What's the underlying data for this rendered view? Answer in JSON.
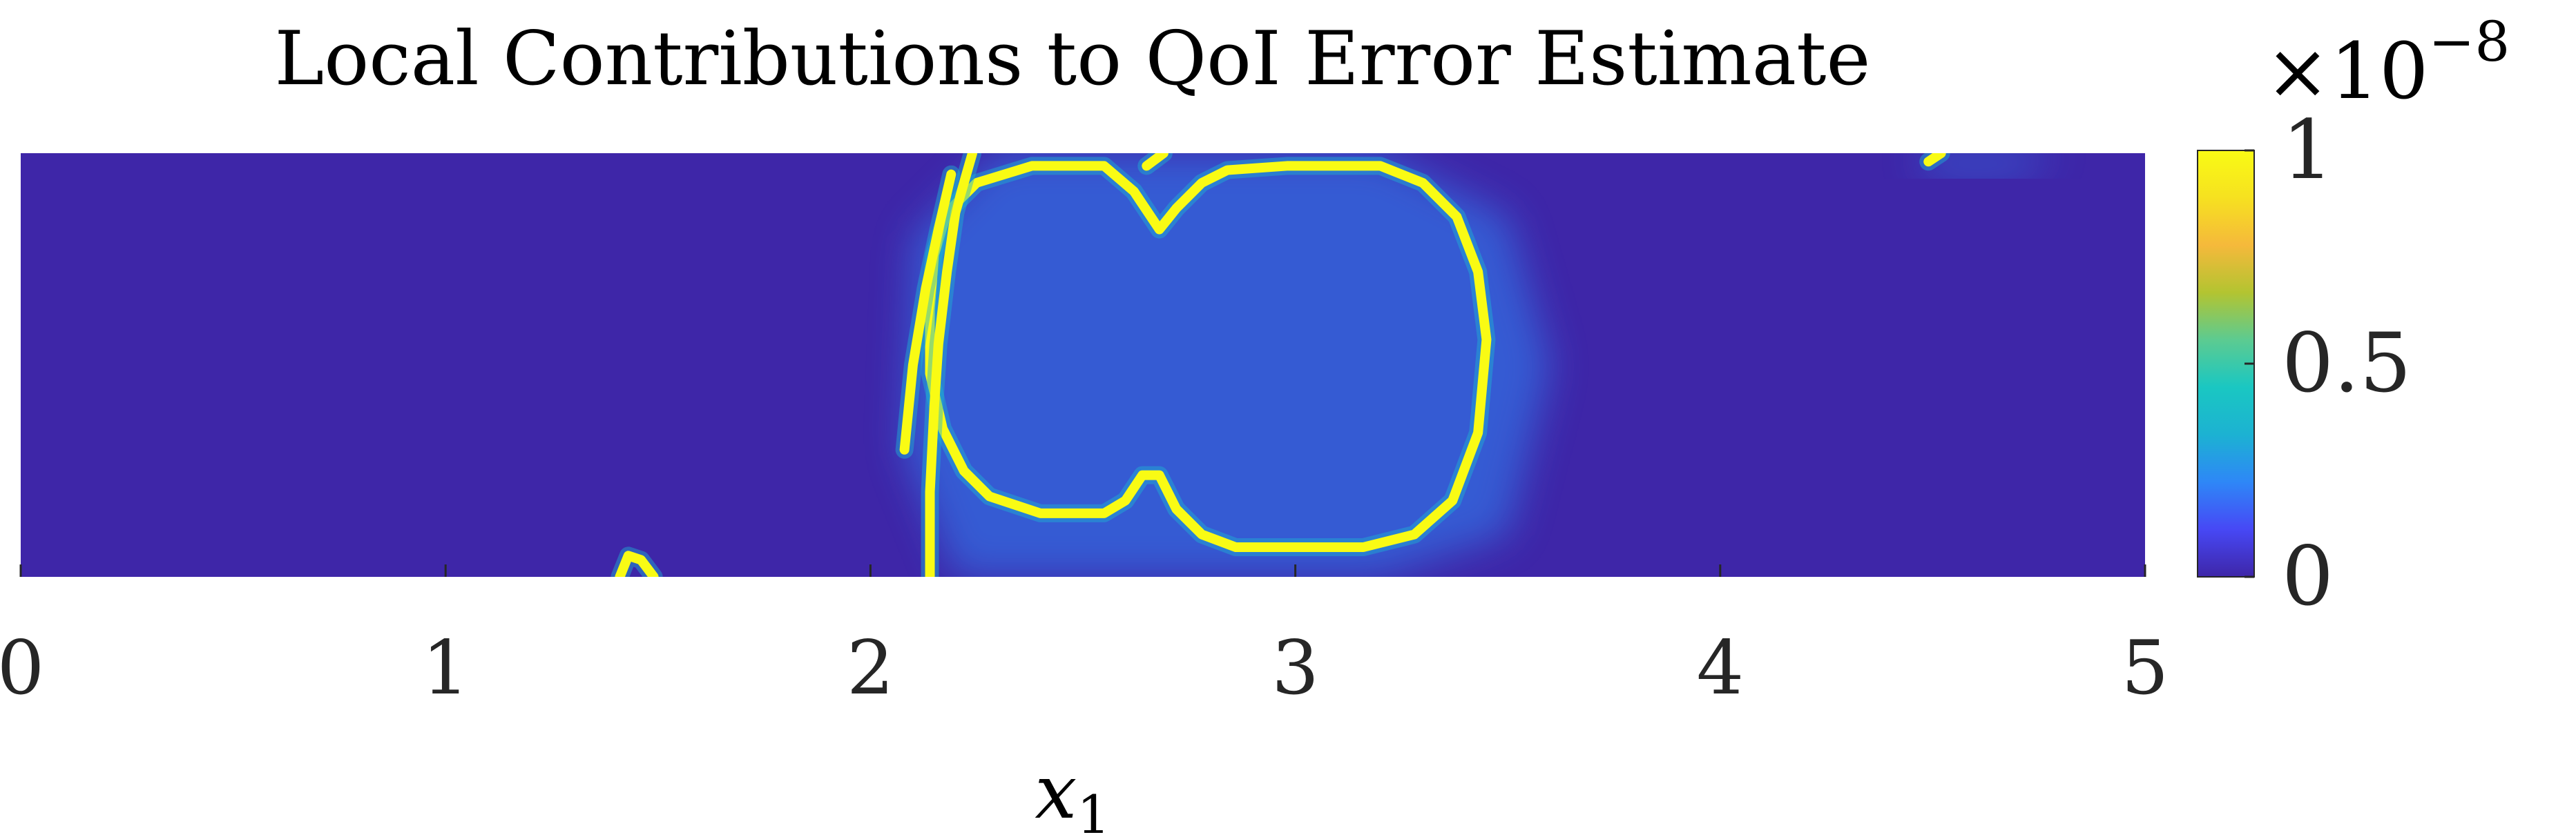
{
  "chart_data": {
    "type": "heatmap",
    "title": "Local Contributions to QoI Error Estimate",
    "xlabel": "x",
    "xlabel_subscript": "1",
    "ylabel": "",
    "xlim": [
      0,
      5
    ],
    "xticks": [
      {
        "value": 0,
        "label": "0"
      },
      {
        "value": 1,
        "label": "1"
      },
      {
        "value": 2,
        "label": "2"
      },
      {
        "value": 3,
        "label": "3"
      },
      {
        "value": 4,
        "label": "4"
      },
      {
        "value": 5,
        "label": "5"
      }
    ],
    "yticks": [],
    "colorbar": {
      "range": [
        0,
        1
      ],
      "multiplier": "×10",
      "multiplier_exponent": "−8",
      "ticks": [
        {
          "value": 0,
          "label": "0"
        },
        {
          "value": 0.5,
          "label": "0.5"
        },
        {
          "value": 1,
          "label": "1"
        }
      ],
      "colormap": [
        "#3e26a8",
        "#4748f5",
        "#2e87f7",
        "#1cb2d2",
        "#1ac7c2",
        "#5ccb91",
        "#b3c431",
        "#f5b93b",
        "#f6e120",
        "#f9fb14"
      ]
    },
    "background_value": 0,
    "background_color": "#3e26a8",
    "feature_color": "#f9fb14",
    "features": [
      {
        "name": "closed-front-loop",
        "value": 1,
        "closed": true,
        "points": [
          [
            2.18,
            0.86
          ],
          [
            2.25,
            0.93
          ],
          [
            2.38,
            0.97
          ],
          [
            2.55,
            0.97
          ],
          [
            2.62,
            0.91
          ],
          [
            2.68,
            0.82
          ],
          [
            2.72,
            0.87
          ],
          [
            2.78,
            0.93
          ],
          [
            2.84,
            0.96
          ],
          [
            2.98,
            0.97
          ],
          [
            3.2,
            0.97
          ],
          [
            3.3,
            0.93
          ],
          [
            3.38,
            0.85
          ],
          [
            3.43,
            0.72
          ],
          [
            3.45,
            0.56
          ],
          [
            3.43,
            0.34
          ],
          [
            3.37,
            0.18
          ],
          [
            3.28,
            0.1
          ],
          [
            3.16,
            0.07
          ],
          [
            3.02,
            0.07
          ],
          [
            2.86,
            0.07
          ],
          [
            2.78,
            0.1
          ],
          [
            2.72,
            0.16
          ],
          [
            2.68,
            0.24
          ],
          [
            2.64,
            0.24
          ],
          [
            2.6,
            0.18
          ],
          [
            2.55,
            0.15
          ],
          [
            2.4,
            0.15
          ],
          [
            2.28,
            0.19
          ],
          [
            2.22,
            0.25
          ],
          [
            2.17,
            0.35
          ],
          [
            2.14,
            0.48
          ],
          [
            2.14,
            0.63
          ],
          [
            2.15,
            0.76
          ]
        ]
      },
      {
        "name": "open-front-a",
        "value": 1,
        "closed": false,
        "points": [
          [
            2.14,
            0.0
          ],
          [
            2.14,
            0.2
          ],
          [
            2.15,
            0.4
          ],
          [
            2.16,
            0.55
          ],
          [
            2.18,
            0.72
          ],
          [
            2.2,
            0.86
          ],
          [
            2.24,
            1.0
          ]
        ]
      },
      {
        "name": "open-front-b",
        "value": 1,
        "closed": false,
        "points": [
          [
            2.08,
            0.3
          ],
          [
            2.1,
            0.5
          ],
          [
            2.13,
            0.68
          ],
          [
            2.16,
            0.82
          ],
          [
            2.19,
            0.95
          ]
        ]
      },
      {
        "name": "top-fragment-1",
        "value": 1,
        "closed": false,
        "points": [
          [
            2.65,
            0.97
          ],
          [
            2.69,
            1.0
          ]
        ]
      },
      {
        "name": "top-fragment-2",
        "value": 1,
        "closed": false,
        "points": [
          [
            4.49,
            0.98
          ],
          [
            4.52,
            1.0
          ]
        ]
      },
      {
        "name": "bottom-fragment",
        "value": 1,
        "closed": false,
        "points": [
          [
            1.41,
            0.0
          ],
          [
            1.43,
            0.05
          ],
          [
            1.46,
            0.04
          ],
          [
            1.49,
            0.0
          ]
        ]
      }
    ],
    "halos": [
      {
        "name": "halo-closed-front",
        "points": [
          [
            2.1,
            0.8
          ],
          [
            2.3,
            1.0
          ],
          [
            3.2,
            1.0
          ],
          [
            3.5,
            0.85
          ],
          [
            3.6,
            0.5
          ],
          [
            3.5,
            0.1
          ],
          [
            3.2,
            0.0
          ],
          [
            2.2,
            0.0
          ],
          [
            2.08,
            0.3
          ]
        ],
        "value": 0.15
      },
      {
        "name": "halo-top-right",
        "points": [
          [
            4.45,
            1.0
          ],
          [
            4.8,
            1.0
          ],
          [
            4.7,
            0.95
          ],
          [
            4.5,
            0.95
          ]
        ],
        "value": 0.1
      }
    ],
    "grid": false,
    "legend": "colorbar-right"
  }
}
